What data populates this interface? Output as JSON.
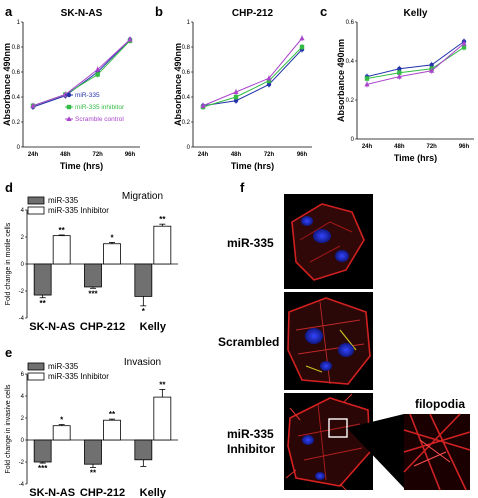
{
  "panel_labels": [
    "a",
    "b",
    "c",
    "d",
    "e",
    "f"
  ],
  "colors": {
    "mir335": "#2233aa",
    "inhibitor": "#33bb44",
    "scramble": "#aa44cc",
    "bar_dark": "#707070",
    "bar_light": "#ffffff"
  },
  "chart_data": [
    {
      "type": "line",
      "panel": "a",
      "title": "SK-N-AS",
      "xlabel": "Time (hrs)",
      "ylabel": "Absorbance 490nm",
      "x": [
        "24h",
        "48h",
        "72h",
        "96h"
      ],
      "ylim": [
        0,
        1
      ],
      "yticks": [
        "0",
        "0.2",
        "0.4",
        "0.6",
        "0.8",
        "1"
      ],
      "legend_position": "lower-right",
      "series": [
        {
          "name": "miR-335",
          "values": [
            0.32,
            0.41,
            0.6,
            0.86
          ]
        },
        {
          "name": "miR-335 inhibitor",
          "values": [
            0.33,
            0.42,
            0.58,
            0.85
          ]
        },
        {
          "name": "Scramble control",
          "values": [
            0.33,
            0.42,
            0.62,
            0.86
          ]
        }
      ]
    },
    {
      "type": "line",
      "panel": "b",
      "title": "CHP-212",
      "xlabel": "Time (hrs)",
      "ylabel": "Absorbance 490nm",
      "x": [
        "24h",
        "48h",
        "72h",
        "96h"
      ],
      "ylim": [
        0,
        1
      ],
      "yticks": [
        "0",
        "0.2",
        "0.4",
        "0.6",
        "0.8",
        "1"
      ],
      "series": [
        {
          "name": "miR-335",
          "values": [
            0.33,
            0.37,
            0.5,
            0.78
          ]
        },
        {
          "name": "miR-335 inhibitor",
          "values": [
            0.32,
            0.4,
            0.53,
            0.8
          ]
        },
        {
          "name": "Scramble control",
          "values": [
            0.33,
            0.44,
            0.55,
            0.87
          ]
        }
      ]
    },
    {
      "type": "line",
      "panel": "c",
      "title": "Kelly",
      "xlabel": "Time (hrs)",
      "ylabel": "Absorbance 490nm",
      "x": [
        "24h",
        "48h",
        "72h",
        "96h"
      ],
      "ylim": [
        0,
        0.6
      ],
      "yticks": [
        "0",
        "0.2",
        "0.4",
        "0.6"
      ],
      "series": [
        {
          "name": "miR-335",
          "values": [
            0.32,
            0.36,
            0.38,
            0.5
          ]
        },
        {
          "name": "miR-335 inhibitor",
          "values": [
            0.31,
            0.34,
            0.36,
            0.47
          ]
        },
        {
          "name": "Scramble control",
          "values": [
            0.28,
            0.32,
            0.35,
            0.49
          ]
        }
      ]
    },
    {
      "type": "bar",
      "panel": "d",
      "title": "Migration",
      "ylabel": "Fold change in motile cells",
      "categories": [
        "SK-N-AS",
        "CHP-212",
        "Kelly"
      ],
      "ylim": [
        -4,
        4
      ],
      "yticks": [
        "-4",
        "-2",
        "0",
        "2",
        "4"
      ],
      "legend_position": "top-left",
      "series": [
        {
          "name": "miR-335",
          "values": [
            -2.3,
            -1.7,
            -2.4
          ],
          "errors": [
            0.2,
            0.1,
            0.7
          ],
          "stars": [
            "**",
            "***",
            "*"
          ]
        },
        {
          "name": "miR-335 Inhibitor",
          "values": [
            2.1,
            1.5,
            2.8
          ],
          "errors": [
            0.05,
            0.1,
            0.15
          ],
          "stars": [
            "**",
            "*",
            "**"
          ]
        }
      ]
    },
    {
      "type": "bar",
      "panel": "e",
      "title": "Invasion",
      "ylabel": "Fold change in invasive cells",
      "categories": [
        "SK-N-AS",
        "CHP-212",
        "Kelly"
      ],
      "ylim": [
        -4,
        6
      ],
      "yticks": [
        "-4",
        "-2",
        "0",
        "2",
        "4",
        "6"
      ],
      "legend_position": "top-left",
      "series": [
        {
          "name": "miR-335",
          "values": [
            -2.0,
            -2.2,
            -1.8
          ],
          "errors": [
            0.1,
            0.3,
            0.6
          ],
          "stars": [
            "***",
            "**",
            ""
          ]
        },
        {
          "name": "miR-335 Inhibitor",
          "values": [
            1.3,
            1.8,
            3.9
          ],
          "errors": [
            0.1,
            0.1,
            0.7
          ],
          "stars": [
            "*",
            "**",
            "**"
          ]
        }
      ]
    }
  ],
  "micrographs": {
    "labels": [
      "miR-335",
      "Scrambled",
      "miR-335",
      "Inhibitor"
    ],
    "inset_label": "filopodia"
  }
}
